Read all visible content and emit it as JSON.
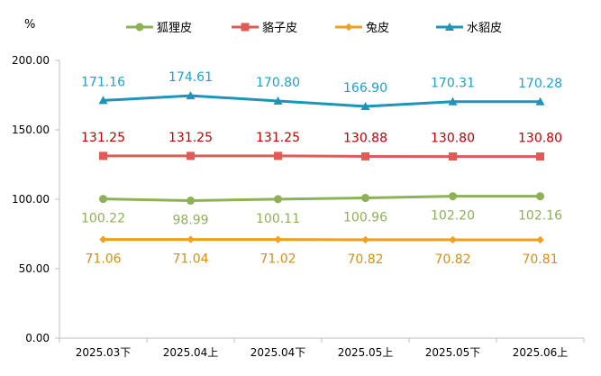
{
  "chart_data": {
    "type": "line",
    "y_unit": "%",
    "categories": [
      "2025.03下",
      "2025.04上",
      "2025.04下",
      "2025.05上",
      "2025.05下",
      "2025.06上"
    ],
    "ylim": [
      0,
      200
    ],
    "y_ticks": [
      "0.00",
      "50.00",
      "100.00",
      "150.00",
      "200.00"
    ],
    "legend_position": "top",
    "grid": false,
    "series": [
      {
        "name": "狐狸皮",
        "color": "#8DB255",
        "marker": "circle",
        "values": [
          100.22,
          98.99,
          100.11,
          100.96,
          102.2,
          102.16
        ],
        "labels": [
          "100.22",
          "98.99",
          "100.11",
          "100.96",
          "102.20",
          "102.16"
        ],
        "label_position": "below"
      },
      {
        "name": "貉子皮",
        "color": "#E05A56",
        "label_color": "#C00000",
        "marker": "square",
        "values": [
          131.25,
          131.25,
          131.25,
          130.88,
          130.8,
          130.8
        ],
        "labels": [
          "131.25",
          "131.25",
          "131.25",
          "130.88",
          "130.80",
          "130.80"
        ],
        "label_position": "above"
      },
      {
        "name": "兔皮",
        "color": "#F0A01E",
        "label_color": "#D98E14",
        "marker": "diamond",
        "values": [
          71.06,
          71.04,
          71.02,
          70.82,
          70.82,
          70.81
        ],
        "labels": [
          "71.06",
          "71.04",
          "71.02",
          "70.82",
          "70.82",
          "70.81"
        ],
        "label_position": "below"
      },
      {
        "name": "水貂皮",
        "color": "#1B95B8",
        "label_color": "#1AA3D0",
        "marker": "triangle",
        "values": [
          171.16,
          174.61,
          170.8,
          166.9,
          170.31,
          170.28
        ],
        "labels": [
          "171.16",
          "174.61",
          "170.80",
          "166.90",
          "170.31",
          "170.28"
        ],
        "label_position": "above"
      }
    ]
  }
}
